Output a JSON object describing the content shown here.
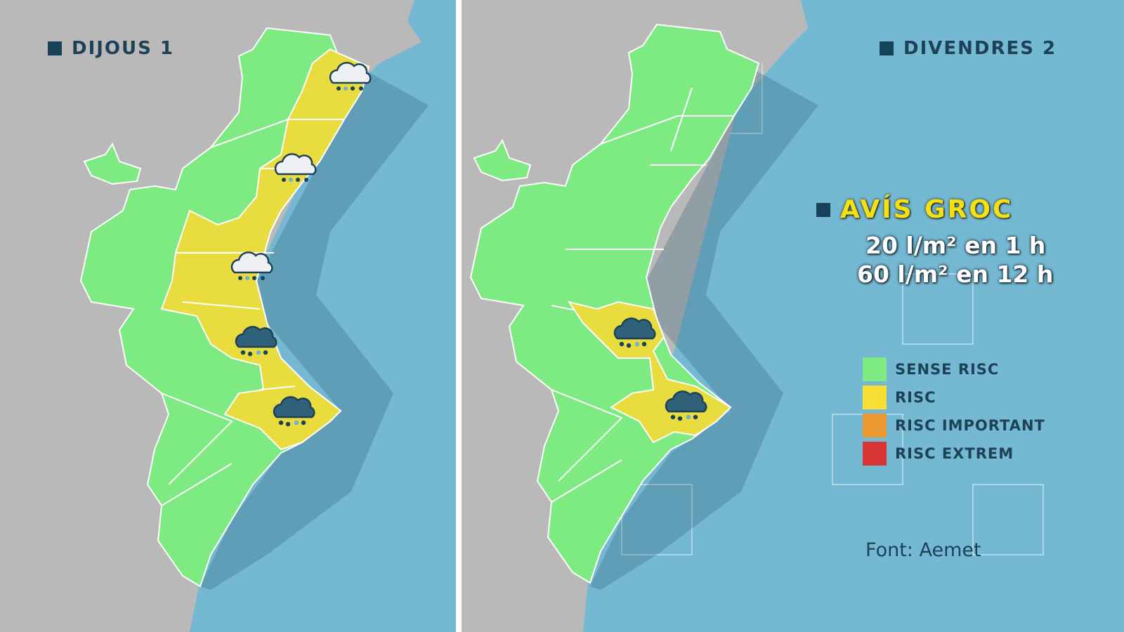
{
  "panels": [
    {
      "title": "DIJOUS 1"
    },
    {
      "title": "DIVENDRES 2"
    }
  ],
  "warning": {
    "title": "AVÍS GROC",
    "line1": "20 l/m² en 1 h",
    "line2": "60 l/m² en 12 h"
  },
  "legend": [
    {
      "label": "SENSE RISC",
      "color": "#7eea82"
    },
    {
      "label": "RISC",
      "color": "#f9df33"
    },
    {
      "label": "RISC IMPORTANT",
      "color": "#ec9b33"
    },
    {
      "label": "RISC EXTREM",
      "color": "#d83434"
    }
  ],
  "source": "Font: Aemet",
  "colors": {
    "land": "#b9b9b9",
    "sea": "#74b8d2",
    "no_risk": "#7eea82",
    "risk": "#e9dc3e",
    "icon_dark": "#2f6178"
  },
  "icons": {
    "day1": [
      "rain-cloud-light",
      "rain-cloud-light",
      "rain-cloud-light",
      "rain-cloud-dark",
      "rain-cloud-dark"
    ],
    "day2": [
      "rain-cloud-dark",
      "rain-cloud-dark"
    ]
  }
}
